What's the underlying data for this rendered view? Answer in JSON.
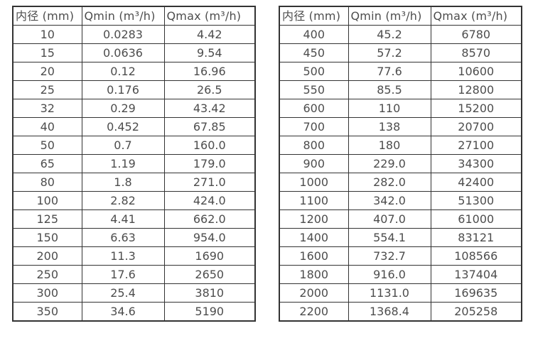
{
  "colors": {
    "background": "#ffffff",
    "border": "#333333",
    "text": "#4d4d4d"
  },
  "chart_data": [
    {
      "type": "table",
      "title": "",
      "columns": [
        "内径 (mm)",
        "Qmin (m³/h)",
        "Qmax (m³/h)"
      ],
      "rows": [
        [
          "10",
          "0.0283",
          "4.42"
        ],
        [
          "15",
          "0.0636",
          "9.54"
        ],
        [
          "20",
          "0.12",
          "16.96"
        ],
        [
          "25",
          "0.176",
          "26.5"
        ],
        [
          "32",
          "0.29",
          "43.42"
        ],
        [
          "40",
          "0.452",
          "67.85"
        ],
        [
          "50",
          "0.7",
          "160.0"
        ],
        [
          "65",
          "1.19",
          "179.0"
        ],
        [
          "80",
          "1.8",
          "271.0"
        ],
        [
          "100",
          "2.82",
          "424.0"
        ],
        [
          "125",
          "4.41",
          "662.0"
        ],
        [
          "150",
          "6.63",
          "954.0"
        ],
        [
          "200",
          "11.3",
          "1690"
        ],
        [
          "250",
          "17.6",
          "2650"
        ],
        [
          "300",
          "25.4",
          "3810"
        ],
        [
          "350",
          "34.6",
          "5190"
        ]
      ]
    },
    {
      "type": "table",
      "title": "",
      "columns": [
        "内径 (mm)",
        "Qmin (m³/h)",
        "Qmax (m³/h)"
      ],
      "rows": [
        [
          "400",
          "45.2",
          "6780"
        ],
        [
          "450",
          "57.2",
          "8570"
        ],
        [
          "500",
          "77.6",
          "10600"
        ],
        [
          "550",
          "85.5",
          "12800"
        ],
        [
          "600",
          "110",
          "15200"
        ],
        [
          "700",
          "138",
          "20700"
        ],
        [
          "800",
          "180",
          "27100"
        ],
        [
          "900",
          "229.0",
          "34300"
        ],
        [
          "1000",
          "282.0",
          "42400"
        ],
        [
          "1100",
          "342.0",
          "51300"
        ],
        [
          "1200",
          "407.0",
          "61000"
        ],
        [
          "1400",
          "554.1",
          "83121"
        ],
        [
          "1600",
          "732.7",
          "108566"
        ],
        [
          "1800",
          "916.0",
          "137404"
        ],
        [
          "2000",
          "1131.0",
          "169635"
        ],
        [
          "2200",
          "1368.4",
          "205258"
        ]
      ]
    }
  ]
}
